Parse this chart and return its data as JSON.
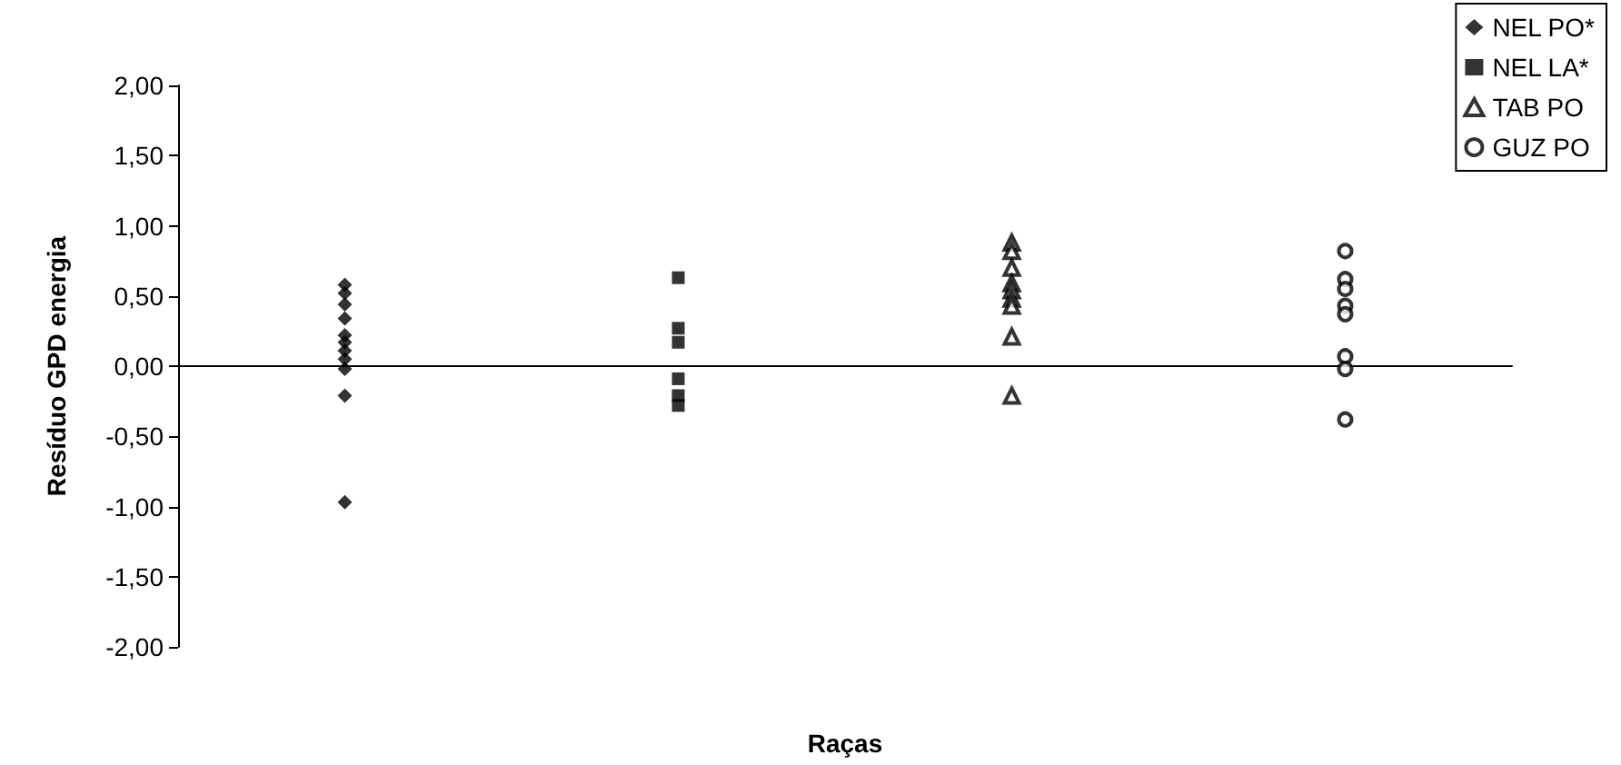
{
  "chart_data": {
    "type": "scatter",
    "xlabel": "Raças",
    "ylabel": "Resíduo GPD energia",
    "categories": [
      null,
      null,
      null,
      null
    ],
    "ylim": [
      -2,
      2
    ],
    "yticks": [
      {
        "value": -2,
        "label": "-2,00"
      },
      {
        "value": -1.5,
        "label": "-1,50"
      },
      {
        "value": -1,
        "label": "-1,00"
      },
      {
        "value": -0.5,
        "label": "-0,50"
      },
      {
        "value": 0,
        "label": "0,00"
      },
      {
        "value": 0.5,
        "label": "0,50"
      },
      {
        "value": 1,
        "label": "1,00"
      },
      {
        "value": 1.5,
        "label": "1,50"
      },
      {
        "value": 2,
        "label": "2,00"
      }
    ],
    "tick_labels": "y",
    "legend": "top right",
    "series": [
      {
        "name": "NEL PO*",
        "color": "#000000",
        "marker": "diamond",
        "values": [
          0.58,
          null,
          null,
          null
        ]
      },
      {
        "color": "#000000",
        "marker": "diamond",
        "values": [
          0.52,
          null,
          null,
          null
        ]
      },
      {
        "color": "#000000",
        "marker": "diamond",
        "values": [
          0.44,
          null,
          null,
          null
        ]
      },
      {
        "color": "#000000",
        "marker": "diamond",
        "values": [
          0.34,
          null,
          null,
          null
        ]
      },
      {
        "color": "#000000",
        "marker": "diamond",
        "values": [
          0.22,
          null,
          null,
          null
        ]
      },
      {
        "color": "#000000",
        "marker": "diamond",
        "values": [
          0.17,
          null,
          null,
          null
        ]
      },
      {
        "color": "#000000",
        "marker": "diamond",
        "values": [
          0.11,
          null,
          null,
          null
        ]
      },
      {
        "color": "#000000",
        "marker": "diamond",
        "values": [
          0.05,
          null,
          null,
          null
        ]
      },
      {
        "color": "#000000",
        "marker": "diamond",
        "values": [
          -0.02,
          null,
          null,
          null
        ]
      },
      {
        "color": "#000000",
        "marker": "diamond",
        "values": [
          -0.21,
          null,
          null,
          null
        ]
      },
      {
        "color": "#000000",
        "marker": "diamond",
        "values": [
          -0.97,
          null,
          null,
          null
        ]
      },
      {
        "name": "NEL LA*",
        "color": "#000000",
        "marker": "square",
        "values": [
          null,
          0.63,
          null,
          null
        ]
      },
      {
        "color": "#000000",
        "marker": "square",
        "values": [
          null,
          0.27,
          null,
          null
        ]
      },
      {
        "color": "#000000",
        "marker": "square",
        "values": [
          null,
          0.17,
          null,
          null
        ]
      },
      {
        "color": "#000000",
        "marker": "square",
        "values": [
          null,
          -0.09,
          null,
          null
        ]
      },
      {
        "color": "#000000",
        "marker": "square",
        "values": [
          null,
          -0.21,
          null,
          null
        ]
      },
      {
        "color": "#000000",
        "marker": "square",
        "values": [
          null,
          -0.28,
          null,
          null
        ]
      },
      {
        "name": "TAB PO",
        "color": "#000000",
        "marker": "triangle",
        "values": [
          null,
          null,
          0.88,
          null
        ]
      },
      {
        "color": "#000000",
        "marker": "triangle",
        "values": [
          null,
          null,
          0.82,
          null
        ]
      },
      {
        "color": "#000000",
        "marker": "triangle",
        "values": [
          null,
          null,
          0.7,
          null
        ]
      },
      {
        "color": "#000000",
        "marker": "triangle",
        "values": [
          null,
          null,
          0.59,
          null
        ]
      },
      {
        "color": "#000000",
        "marker": "triangle",
        "values": [
          null,
          null,
          0.54,
          null
        ]
      },
      {
        "color": "#000000",
        "marker": "triangle",
        "values": [
          null,
          null,
          0.48,
          null
        ]
      },
      {
        "color": "#000000",
        "marker": "triangle",
        "values": [
          null,
          null,
          0.43,
          null
        ]
      },
      {
        "color": "#000000",
        "marker": "triangle",
        "values": [
          null,
          null,
          0.21,
          null
        ]
      },
      {
        "color": "#000000",
        "marker": "triangle",
        "values": [
          null,
          null,
          -0.21,
          null
        ]
      },
      {
        "name": "GUZ PO",
        "color": "#000000",
        "marker": "circle",
        "values": [
          null,
          null,
          null,
          0.82
        ]
      },
      {
        "color": "#000000",
        "marker": "circle",
        "values": [
          null,
          null,
          null,
          0.62
        ]
      },
      {
        "color": "#000000",
        "marker": "circle",
        "values": [
          null,
          null,
          null,
          0.55
        ]
      },
      {
        "color": "#000000",
        "marker": "circle",
        "values": [
          null,
          null,
          null,
          0.43
        ]
      },
      {
        "color": "#000000",
        "marker": "circle",
        "values": [
          null,
          null,
          null,
          0.37
        ]
      },
      {
        "color": "#000000",
        "marker": "circle",
        "values": [
          null,
          null,
          null,
          0.07
        ]
      },
      {
        "color": "#000000",
        "marker": "circle",
        "values": [
          null,
          null,
          null,
          -0.02
        ]
      },
      {
        "color": "#000000",
        "marker": "circle",
        "values": [
          null,
          null,
          null,
          -0.38
        ]
      }
    ]
  }
}
